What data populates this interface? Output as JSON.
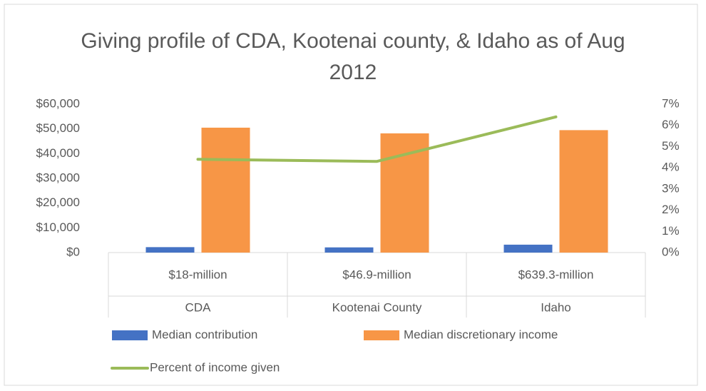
{
  "chart_data": {
    "type": "bar_line",
    "title": "Giving profile of CDA, Kootenai county, & Idaho as of Aug 2012",
    "categories": [
      "$18-million",
      "$46.9-million",
      "$639.3-million"
    ],
    "subcategories": [
      "CDA",
      "Kootenai County",
      "Idaho"
    ],
    "series": [
      {
        "name": "Median contribution",
        "type": "bar",
        "color": "#4472c4",
        "values": [
          2200,
          2100,
          3200
        ]
      },
      {
        "name": "Median discretionary income",
        "type": "bar",
        "color": "#f79646",
        "values": [
          50500,
          48200,
          49500
        ]
      },
      {
        "name": "Percent of income given",
        "type": "line",
        "axis": "y2",
        "color": "#9bbb59",
        "values": [
          4.4,
          4.3,
          6.4
        ]
      }
    ],
    "ylim": [
      0,
      60000
    ],
    "yticks": [
      {
        "value": 0,
        "label": "$0"
      },
      {
        "value": 10000,
        "label": "$10,000"
      },
      {
        "value": 20000,
        "label": "$20,000"
      },
      {
        "value": 30000,
        "label": "$30,000"
      },
      {
        "value": 40000,
        "label": "$40,000"
      },
      {
        "value": 50000,
        "label": "$50,000"
      },
      {
        "value": 60000,
        "label": "$60,000"
      }
    ],
    "y2lim": [
      0,
      7
    ],
    "y2ticks": [
      {
        "value": 0,
        "label": "0%"
      },
      {
        "value": 1,
        "label": "1%"
      },
      {
        "value": 2,
        "label": "2%"
      },
      {
        "value": 3,
        "label": "3%"
      },
      {
        "value": 4,
        "label": "4%"
      },
      {
        "value": 5,
        "label": "5%"
      },
      {
        "value": 6,
        "label": "6%"
      },
      {
        "value": 7,
        "label": "7%"
      }
    ],
    "legend": "bottom"
  }
}
